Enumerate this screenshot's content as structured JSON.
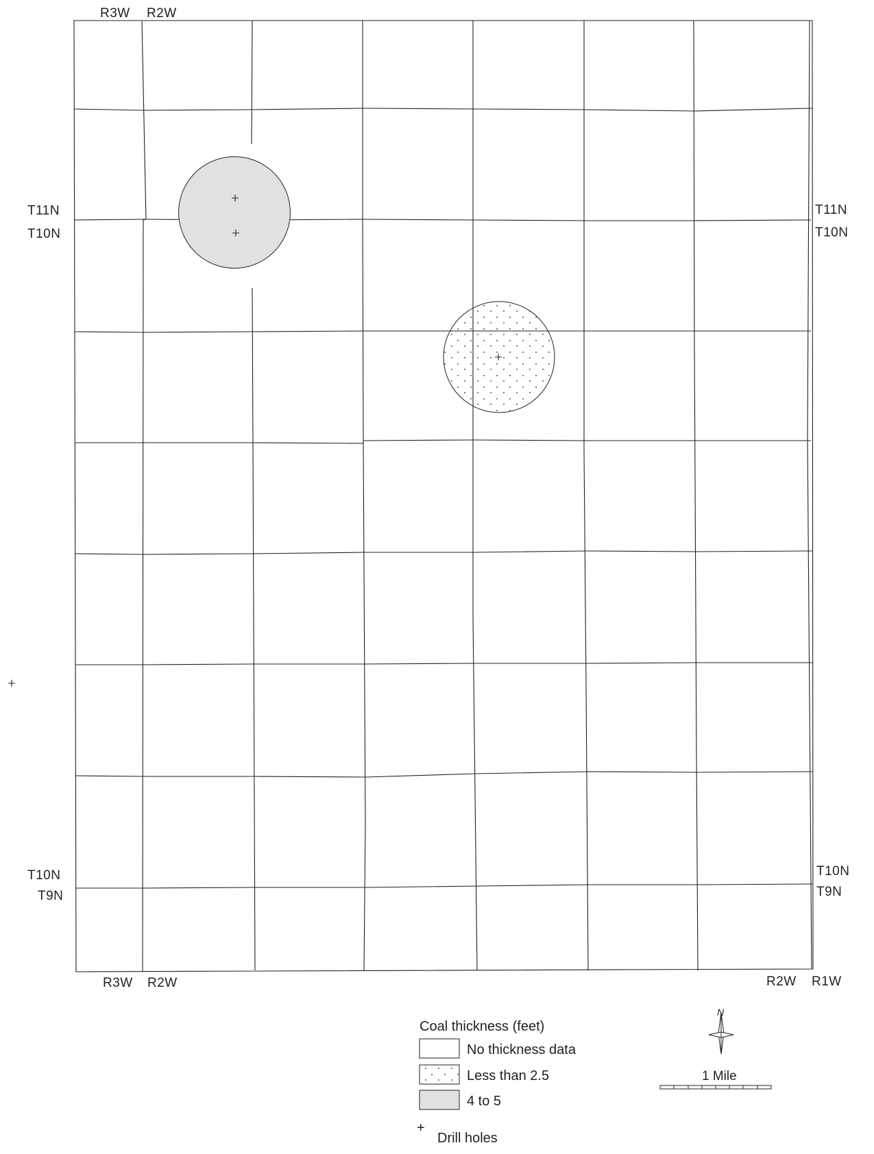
{
  "township_labels": {
    "top_left_range_a": "R3W",
    "top_left_range_b": "R2W",
    "left_t11n": "T11N",
    "left_t10n_upper": "T10N",
    "right_t11n": "T11N",
    "right_t10n_upper": "T10N",
    "left_t10n_lower": "T10N",
    "left_t9n": "T9N",
    "right_t10n_lower": "T10N",
    "right_t9n": "T9N",
    "bottom_left_range_a": "R3W",
    "bottom_left_range_b": "R2W",
    "bottom_right_range_a": "R2W",
    "bottom_right_range_b": "R1W"
  },
  "legend": {
    "title": "Coal thickness (feet)",
    "items": [
      {
        "label": "No thickness data",
        "pattern": "none",
        "color": "#ffffff"
      },
      {
        "label": "Less than 2.5",
        "pattern": "dots",
        "color": "#ffffff"
      },
      {
        "label": "4 to 5",
        "pattern": "solid",
        "color": "#e0e1e2"
      }
    ],
    "drill_holes_label": "Drill holes",
    "drill_hole_symbol": "+"
  },
  "north_arrow": {
    "label": "N",
    "icon": "north-arrow-icon"
  },
  "scale_bar": {
    "label": "1 Mile"
  },
  "colors": {
    "line": "#231f20",
    "thickness_4_to_5_fill": "#e0e1e2"
  }
}
